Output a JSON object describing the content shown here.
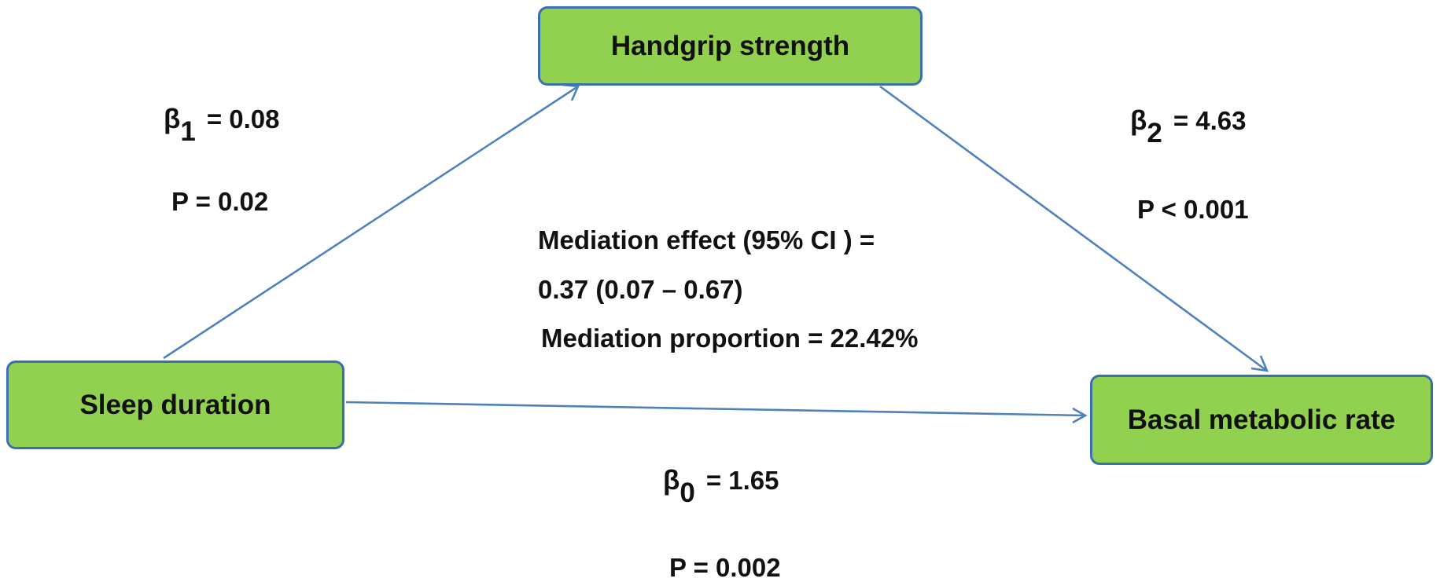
{
  "nodes": {
    "mediator": "Handgrip strength",
    "exposure": "Sleep duration",
    "outcome": "Basal metabolic rate"
  },
  "paths": {
    "a": {
      "beta_symbol": "β",
      "subscript": "1",
      "value_text": "=  0.08",
      "p_text": "P = 0.02"
    },
    "b": {
      "beta_symbol": "β",
      "subscript": "2",
      "value_text": "=  4.63",
      "p_text": "P < 0.001"
    },
    "c": {
      "beta_symbol": "β",
      "subscript": "0",
      "value_text": "= 1.65",
      "p_text": "P = 0.002"
    }
  },
  "mediation": {
    "effect_label": "Mediation effect (95% CI ) =",
    "effect_value": "0.37  (0.07   –   0.67)",
    "proportion": "Mediation proportion = 22.42%"
  },
  "colors": {
    "box_fill": "#92d050",
    "box_border": "#3a6fb0",
    "arrow": "#4f81bd"
  }
}
